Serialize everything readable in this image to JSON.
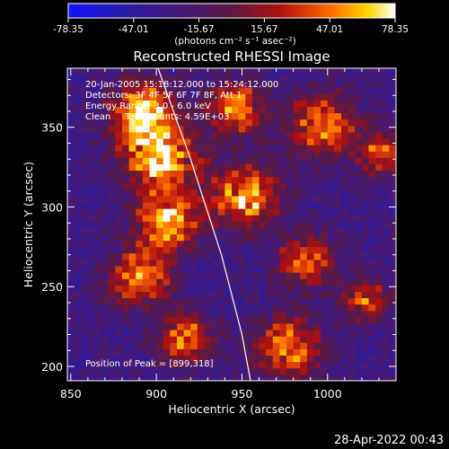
{
  "chart_data": {
    "type": "heatmap",
    "colorbar": {
      "ticks": [
        "-78.35",
        "-47.01",
        "-15.67",
        "15.67",
        "47.01",
        "78.35"
      ],
      "range": [
        -78.35,
        78.35
      ],
      "units_label": "(photons cm⁻² s⁻¹ asec⁻²)"
    },
    "title": "Reconstructed RHESSI Image",
    "annotations": [
      "20-Jan-2005 15:18:12.000 to 15:24:12.000",
      "Detectors: 3F 4F 5F 6F 7F 8F, Att 1",
      "Energy Range: 3.0 - 6.0 keV",
      "Clean     Total counts: 4.59E+03",
      "Position of Peak = [899,318]"
    ],
    "xlabel": "Heliocentric X (arcsec)",
    "ylabel": "Heliocentric Y (arcsec)",
    "x_ticks": [
      "850",
      "900",
      "950",
      "1000"
    ],
    "y_ticks": [
      "200",
      "250",
      "300",
      "350"
    ],
    "xlim": [
      848,
      1040
    ],
    "ylim": [
      191,
      387
    ],
    "peak": [
      899,
      318
    ],
    "limb_curve": [
      [
        901,
        387
      ],
      [
        920,
        330
      ],
      [
        938,
        270
      ],
      [
        950,
        220
      ],
      [
        955,
        191
      ]
    ],
    "hot_regions": [
      {
        "x": 900,
        "y": 330,
        "r": 22,
        "v": 70
      },
      {
        "x": 890,
        "y": 360,
        "r": 18,
        "v": 60
      },
      {
        "x": 905,
        "y": 290,
        "r": 18,
        "v": 62
      },
      {
        "x": 888,
        "y": 255,
        "r": 18,
        "v": 55
      },
      {
        "x": 915,
        "y": 215,
        "r": 16,
        "v": 45
      },
      {
        "x": 950,
        "y": 305,
        "r": 20,
        "v": 58
      },
      {
        "x": 945,
        "y": 360,
        "r": 16,
        "v": 55
      },
      {
        "x": 995,
        "y": 350,
        "r": 20,
        "v": 50
      },
      {
        "x": 985,
        "y": 265,
        "r": 16,
        "v": 42
      },
      {
        "x": 1020,
        "y": 240,
        "r": 14,
        "v": 35
      },
      {
        "x": 975,
        "y": 210,
        "r": 20,
        "v": 50
      },
      {
        "x": 1030,
        "y": 330,
        "r": 14,
        "v": 40
      }
    ],
    "timestamp": "28-Apr-2022 00:43"
  }
}
